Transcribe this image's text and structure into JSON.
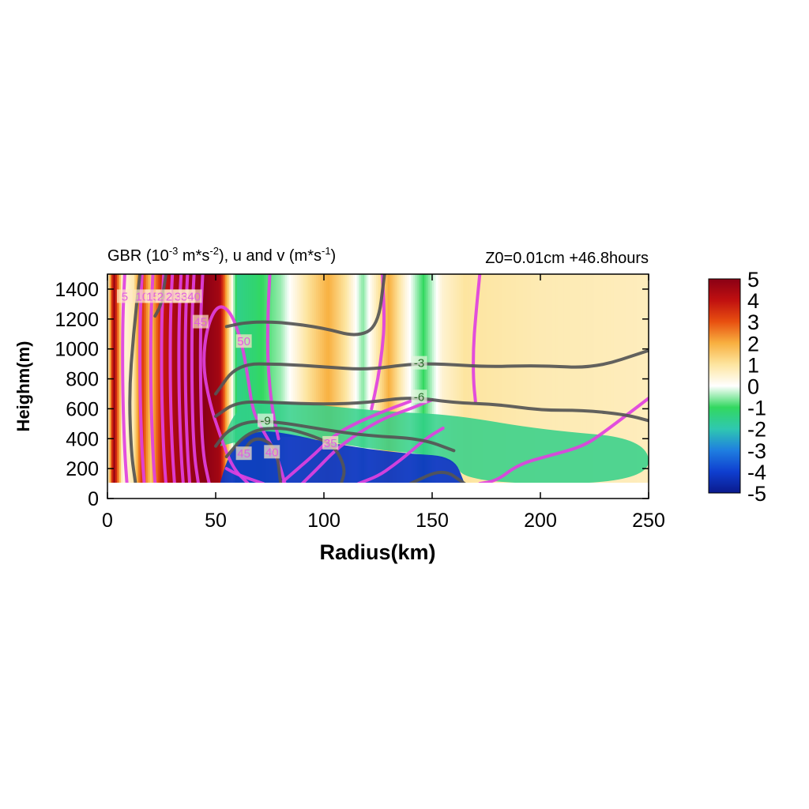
{
  "chart_data": {
    "type": "heatmap",
    "title_left": {
      "base": "GBR (10",
      "sup1": "-3",
      "mid1": " m*s",
      "sup2": "-2",
      "mid2": "), u and v (m*s",
      "sup3": "-1",
      "end": ")"
    },
    "title_right": "Z0=0.01cm  +46.8hours",
    "xlabel": "Radius(km)",
    "ylabel": "Heighm(m)",
    "xlim": [
      0,
      250
    ],
    "ylim": [
      0,
      1500
    ],
    "xticks": [
      "0",
      "50",
      "100",
      "150",
      "200",
      "250"
    ],
    "yticks": [
      "0",
      "200",
      "400",
      "600",
      "800",
      "1000",
      "1200",
      "1400"
    ],
    "colorbar": {
      "range": [
        -5,
        5
      ],
      "ticks": [
        "5",
        "4",
        "3",
        "2",
        "1",
        "0",
        "-1",
        "-2",
        "-3",
        "-4",
        "-5"
      ],
      "colors": [
        "#0a1a8c",
        "#0f3fd0",
        "#1f7fe0",
        "#2fc8b0",
        "#32d860",
        "#ffffff",
        "#fde5a0",
        "#f8b040",
        "#e85010",
        "#c01010",
        "#8a0015"
      ]
    },
    "field_columns": [
      {
        "r": 0,
        "v": 0
      },
      {
        "r": 3,
        "v": 4.8
      },
      {
        "r": 7,
        "v": 0.3
      },
      {
        "r": 12,
        "v": 0.8
      },
      {
        "r": 16,
        "v": 3.5
      },
      {
        "r": 20,
        "v": 1.5
      },
      {
        "r": 25,
        "v": 3.8
      },
      {
        "r": 32,
        "v": 4.5
      },
      {
        "r": 45,
        "v": 5
      },
      {
        "r": 52,
        "v": 4.5
      },
      {
        "r": 55,
        "v": 2
      },
      {
        "r": 60,
        "v": -1.5
      },
      {
        "r": 68,
        "v": -1.2
      },
      {
        "r": 80,
        "v": -0.5
      },
      {
        "r": 92,
        "v": 1.0
      },
      {
        "r": 102,
        "v": 2.0
      },
      {
        "r": 110,
        "v": 1.0
      },
      {
        "r": 118,
        "v": -0.6
      },
      {
        "r": 130,
        "v": 2.0
      },
      {
        "r": 138,
        "v": 0.3
      },
      {
        "r": 146,
        "v": -1.0
      },
      {
        "r": 155,
        "v": 0.5
      },
      {
        "r": 165,
        "v": 1.0
      },
      {
        "r": 200,
        "v": 0.8
      },
      {
        "r": 250,
        "v": 0.7
      }
    ],
    "v_contours": [
      {
        "label": "5",
        "points": [
          [
            8,
            1500
          ],
          [
            7,
            1200
          ],
          [
            7,
            700
          ],
          [
            8,
            300
          ],
          [
            9,
            100
          ]
        ]
      },
      {
        "label": "10",
        "points": [
          [
            16,
            1500
          ],
          [
            15,
            1200
          ],
          [
            15,
            700
          ],
          [
            16,
            300
          ],
          [
            17,
            100
          ]
        ]
      },
      {
        "label": "15",
        "points": [
          [
            21,
            1500
          ],
          [
            20,
            1200
          ],
          [
            20,
            700
          ],
          [
            21,
            300
          ],
          [
            22,
            100
          ]
        ]
      },
      {
        "label": "20",
        "points": [
          [
            26,
            1500
          ],
          [
            25,
            1200
          ],
          [
            25,
            700
          ],
          [
            26,
            300
          ],
          [
            27,
            100
          ]
        ]
      },
      {
        "label": "25",
        "points": [
          [
            30,
            1500
          ],
          [
            29,
            1200
          ],
          [
            29,
            700
          ],
          [
            30,
            300
          ],
          [
            31,
            100
          ]
        ]
      },
      {
        "label": "30",
        "points": [
          [
            34,
            1500
          ],
          [
            33,
            1200
          ],
          [
            33,
            700
          ],
          [
            34,
            300
          ],
          [
            35,
            100
          ]
        ]
      },
      {
        "label": "35",
        "points": [
          [
            37,
            1500
          ],
          [
            36,
            1200
          ],
          [
            36,
            700
          ],
          [
            37,
            300
          ],
          [
            38,
            100
          ]
        ]
      },
      {
        "label": "40",
        "points": [
          [
            40,
            1500
          ],
          [
            39,
            1200
          ],
          [
            39,
            700
          ],
          [
            40,
            300
          ],
          [
            42,
            100
          ]
        ]
      },
      {
        "label": "45",
        "points": [
          [
            44,
            1500
          ],
          [
            43,
            1200
          ],
          [
            43,
            700
          ],
          [
            44,
            300
          ],
          [
            47,
            100
          ]
        ]
      },
      {
        "label": "50",
        "points": [
          [
            65,
            100
          ],
          [
            58,
            200
          ],
          [
            52,
            420
          ],
          [
            47,
            650
          ],
          [
            44,
            900
          ],
          [
            46,
            1150
          ],
          [
            51,
            1300
          ],
          [
            57,
            1250
          ],
          [
            62,
            1050
          ],
          [
            65,
            800
          ],
          [
            67,
            600
          ],
          [
            70,
            500
          ],
          [
            78,
            300
          ],
          [
            82,
            100
          ]
        ]
      },
      {
        "label": "45",
        "points": [
          [
            72,
            100
          ],
          [
            60,
            160
          ],
          [
            55,
            200
          ]
        ]
      },
      {
        "label": "40",
        "points": [
          [
            80,
            100
          ],
          [
            88,
            200
          ],
          [
            96,
            300
          ],
          [
            103,
            400
          ],
          [
            110,
            470
          ],
          [
            125,
            570
          ],
          [
            140,
            650
          ]
        ]
      },
      {
        "label": "35",
        "points": [
          [
            90,
            100
          ],
          [
            97,
            200
          ],
          [
            105,
            320
          ],
          [
            115,
            430
          ],
          [
            128,
            540
          ],
          [
            140,
            600
          ],
          [
            150,
            660
          ]
        ]
      },
      {
        "label": "",
        "points": [
          [
            116,
            100
          ],
          [
            125,
            150
          ],
          [
            132,
            220
          ],
          [
            139,
            300
          ],
          [
            147,
            400
          ],
          [
            155,
            470
          ]
        ]
      },
      {
        "label": "",
        "points": [
          [
            172,
            100
          ],
          [
            180,
            120
          ],
          [
            190,
            230
          ],
          [
            205,
            290
          ],
          [
            220,
            350
          ],
          [
            230,
            450
          ],
          [
            240,
            560
          ],
          [
            250,
            670
          ]
        ]
      },
      {
        "label": "",
        "points": [
          [
            75,
            1500
          ],
          [
            74,
            1200
          ],
          [
            74,
            900
          ],
          [
            76,
            600
          ],
          [
            79,
            400
          ]
        ]
      },
      {
        "label": "",
        "points": [
          [
            127,
            1500
          ],
          [
            128,
            1200
          ],
          [
            127,
            1000
          ],
          [
            125,
            800
          ],
          [
            122,
            600
          ]
        ]
      },
      {
        "label": "",
        "points": [
          [
            172,
            1500
          ],
          [
            170,
            1200
          ],
          [
            169,
            1000
          ],
          [
            169,
            800
          ],
          [
            170,
            650
          ]
        ]
      }
    ],
    "u_contours": [
      {
        "label": "",
        "points": [
          [
            13,
            100
          ],
          [
            11,
            300
          ],
          [
            10,
            700
          ],
          [
            12,
            1100
          ],
          [
            15,
            1500
          ]
        ]
      },
      {
        "label": "",
        "points": [
          [
            22,
            1220
          ],
          [
            25,
            1300
          ],
          [
            27,
            1500
          ]
        ]
      },
      {
        "label": "",
        "points": [
          [
            140,
            100
          ],
          [
            155,
            200
          ],
          [
            165,
            100
          ]
        ]
      },
      {
        "label": "",
        "points": [
          [
            55,
            1150
          ],
          [
            65,
            1180
          ],
          [
            80,
            1180
          ],
          [
            100,
            1140
          ],
          [
            115,
            1080
          ],
          [
            125,
            1150
          ],
          [
            128,
            1500
          ]
        ]
      },
      {
        "label": "-3",
        "points": [
          [
            50,
            700
          ],
          [
            60,
            900
          ],
          [
            80,
            900
          ],
          [
            100,
            880
          ],
          [
            120,
            860
          ],
          [
            140,
            900
          ],
          [
            155,
            900
          ],
          [
            175,
            880
          ],
          [
            200,
            890
          ],
          [
            225,
            870
          ],
          [
            250,
            990
          ]
        ]
      },
      {
        "label": "-6",
        "points": [
          [
            50,
            550
          ],
          [
            60,
            650
          ],
          [
            80,
            640
          ],
          [
            100,
            630
          ],
          [
            120,
            640
          ],
          [
            140,
            680
          ],
          [
            160,
            640
          ],
          [
            180,
            630
          ],
          [
            200,
            590
          ],
          [
            220,
            590
          ],
          [
            240,
            560
          ],
          [
            250,
            520
          ]
        ]
      },
      {
        "label": "-9",
        "points": [
          [
            50,
            350
          ],
          [
            55,
            450
          ],
          [
            65,
            520
          ],
          [
            80,
            510
          ],
          [
            100,
            460
          ],
          [
            120,
            420
          ],
          [
            145,
            400
          ],
          [
            160,
            320
          ]
        ]
      },
      {
        "label": "",
        "points": [
          [
            55,
            280
          ],
          [
            65,
            450
          ],
          [
            80,
            480
          ],
          [
            95,
            420
          ],
          [
            105,
            350
          ],
          [
            110,
            200
          ],
          [
            108,
            100
          ]
        ]
      },
      {
        "label": "",
        "points": [
          [
            62,
            300
          ],
          [
            68,
            420
          ],
          [
            78,
            350
          ],
          [
            80,
            100
          ]
        ]
      }
    ],
    "contour_labels": [
      {
        "text": "-3",
        "x": 144,
        "y": 905
      },
      {
        "text": "-6",
        "x": 144,
        "y": 680
      },
      {
        "text": "-9",
        "x": 73,
        "y": 520
      },
      {
        "text": "50",
        "x": 63,
        "y": 1050
      },
      {
        "text": "45",
        "x": 63,
        "y": 300
      },
      {
        "text": "40",
        "x": 76,
        "y": 310
      },
      {
        "text": "35",
        "x": 103,
        "y": 370
      },
      {
        "text": "45",
        "x": 43,
        "y": 1180
      },
      {
        "text": "5",
        "x": 8,
        "y": 1350
      },
      {
        "text": "10",
        "x": 16,
        "y": 1350
      },
      {
        "text": "15",
        "x": 21,
        "y": 1350
      },
      {
        "text": "20",
        "x": 26,
        "y": 1350
      },
      {
        "text": "25",
        "x": 30,
        "y": 1350
      },
      {
        "text": "30",
        "x": 34,
        "y": 1350
      },
      {
        "text": "35",
        "x": 37,
        "y": 1350
      },
      {
        "text": "40",
        "x": 40,
        "y": 1350
      }
    ],
    "anomaly_regions": [
      {
        "name": "negative-core",
        "value": -4.2,
        "points": [
          [
            52,
            100
          ],
          [
            55,
            250
          ],
          [
            60,
            380
          ],
          [
            70,
            460
          ],
          [
            85,
            430
          ],
          [
            100,
            380
          ],
          [
            120,
            330
          ],
          [
            140,
            300
          ],
          [
            160,
            280
          ],
          [
            165,
            100
          ]
        ]
      },
      {
        "name": "positive-green-belt",
        "value": -1.5,
        "points": [
          [
            52,
            350
          ],
          [
            60,
            620
          ],
          [
            75,
            660
          ],
          [
            100,
            620
          ],
          [
            130,
            580
          ],
          [
            160,
            560
          ],
          [
            200,
            460
          ],
          [
            250,
            400
          ],
          [
            250,
            100
          ],
          [
            165,
            100
          ],
          [
            160,
            280
          ],
          [
            120,
            330
          ],
          [
            85,
            430
          ],
          [
            60,
            380
          ]
        ]
      }
    ]
  }
}
